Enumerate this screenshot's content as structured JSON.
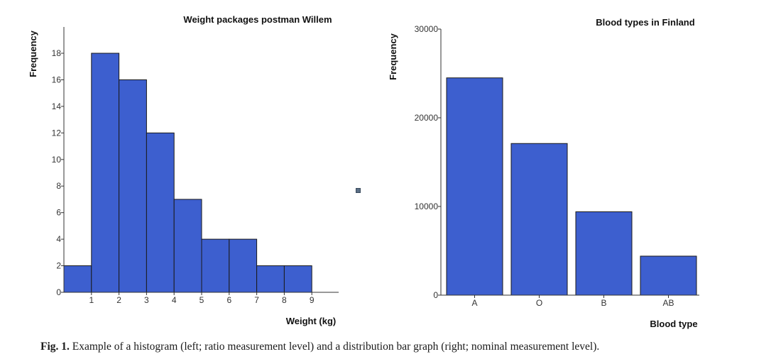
{
  "chart_data": [
    {
      "type": "bar",
      "subtype": "histogram",
      "title": "Weight packages postman Willem",
      "xlabel": "Weight (kg)",
      "ylabel": "Frequency",
      "bin_edges": [
        0,
        1,
        2,
        3,
        4,
        5,
        6,
        7,
        8,
        9
      ],
      "values": [
        2,
        18,
        16,
        12,
        7,
        4,
        4,
        2,
        2
      ],
      "x_ticks": [
        "1",
        "2",
        "3",
        "4",
        "5",
        "6",
        "7",
        "8",
        "9"
      ],
      "y_ticks": [
        "0",
        "2",
        "4",
        "6",
        "8",
        "10",
        "12",
        "14",
        "16",
        "18"
      ],
      "xlim": [
        0,
        10
      ],
      "ylim": [
        0,
        20
      ],
      "bar_color": "#3d5fcf",
      "grid": false
    },
    {
      "type": "bar",
      "title": "Blood types in Finland",
      "xlabel": "Blood type",
      "ylabel": "Frequency",
      "categories": [
        "A",
        "O",
        "B",
        "AB"
      ],
      "values": [
        24500,
        17100,
        9400,
        4400
      ],
      "y_ticks": [
        "0",
        "10000",
        "20000",
        "30000"
      ],
      "ylim": [
        0,
        30000
      ],
      "bar_color": "#3d5fcf",
      "grid": false
    }
  ],
  "caption": {
    "label": "Fig. 1.",
    "text": " Example of a histogram (left; ratio measurement level) and a distribution bar graph (right; nominal measurement level)."
  }
}
